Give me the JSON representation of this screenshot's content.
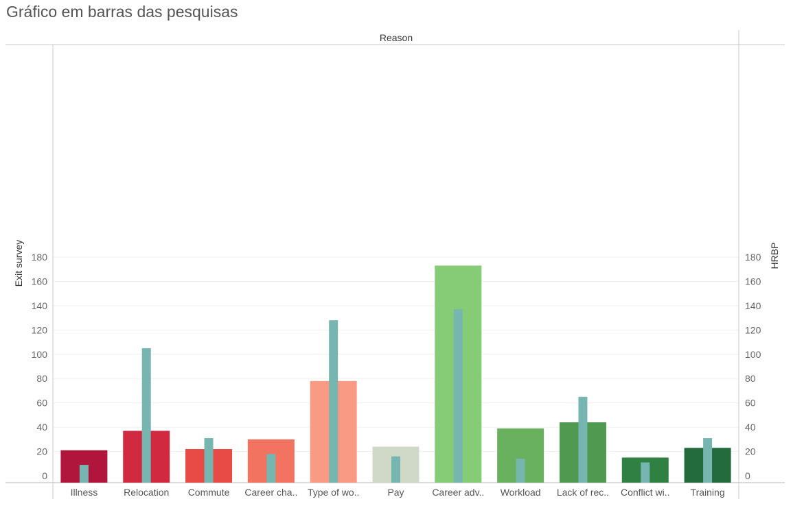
{
  "page_title": "Gráfico em barras das pesquisas",
  "chart_data": {
    "type": "bar",
    "title": "Gráfico em barras das pesquisas",
    "column_header": "Reason",
    "ylabel_left": "Exit survey",
    "ylabel_right": "HRBP",
    "ylim": [
      0,
      180
    ],
    "yticks": [
      0,
      20,
      40,
      60,
      80,
      100,
      120,
      140,
      160,
      180
    ],
    "categories": [
      "Illness",
      "Relocation",
      "Commute",
      "Career cha..",
      "Type of wo..",
      "Pay",
      "Career adv..",
      "Workload",
      "Lack of rec..",
      "Conflict wi..",
      "Training"
    ],
    "series": [
      {
        "name": "Exit survey",
        "axis": "left",
        "values": [
          21,
          37,
          22,
          30,
          78,
          24,
          173,
          39,
          44,
          15,
          23
        ]
      },
      {
        "name": "HRBP",
        "axis": "right",
        "color": "#76b5b0",
        "values": [
          9,
          105,
          31,
          18,
          128,
          16,
          137,
          14,
          65,
          11,
          31
        ]
      }
    ],
    "bar_colors": [
      "#b0163b",
      "#d12a40",
      "#e84a45",
      "#f17360",
      "#f99a84",
      "#d0d8c8",
      "#86cb76",
      "#6ab15f",
      "#4f9a50",
      "#2f8042",
      "#236a3c"
    ],
    "grid": true
  }
}
